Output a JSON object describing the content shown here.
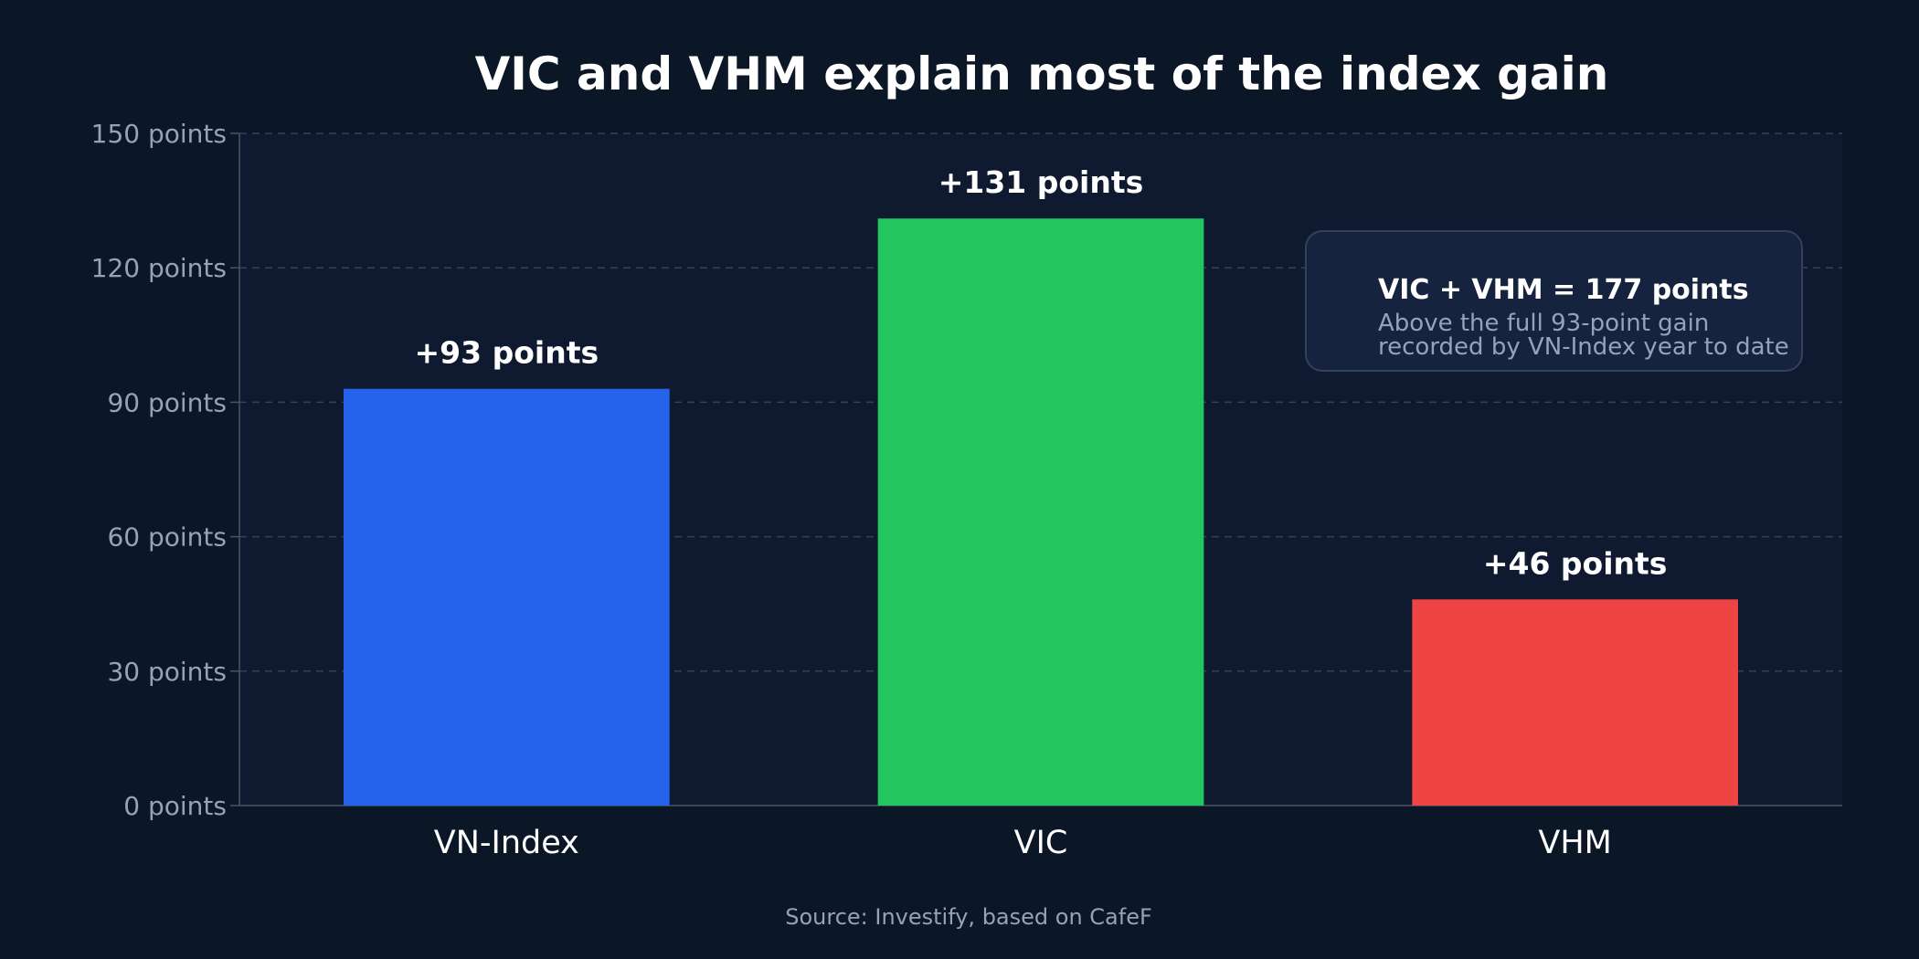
{
  "colors": {
    "page_background": "#0b1627",
    "plot_background": "#0f1a31",
    "grid": "#334155",
    "axis": "#475569",
    "annotation_background": "#15233f",
    "annotation_border": "#33415a"
  },
  "chart_data": {
    "type": "bar",
    "title": "VIC and VHM explain most of the index gain",
    "xlabel": "",
    "ylabel": "",
    "categories": [
      "VN-Index",
      "VIC",
      "VHM"
    ],
    "values": [
      93,
      131,
      46
    ],
    "data_labels": [
      "+93 points",
      "+131 points",
      "+46 points"
    ],
    "bar_colors": [
      "#2563eb",
      "#22c55e",
      "#ef4444"
    ],
    "ylim": [
      0,
      150
    ],
    "y_ticks": [
      0,
      30,
      60,
      90,
      120,
      150
    ],
    "y_tick_labels": [
      "0 points",
      "30 points",
      "60 points",
      "90 points",
      "120 points",
      "150 points"
    ],
    "grid": true,
    "annotation": {
      "title": "VIC + VHM = 177 points",
      "lines": [
        "Above the full 93-point gain",
        "recorded by VN-Index year to date"
      ]
    },
    "source": "Source: Investify, based on CafeF"
  }
}
